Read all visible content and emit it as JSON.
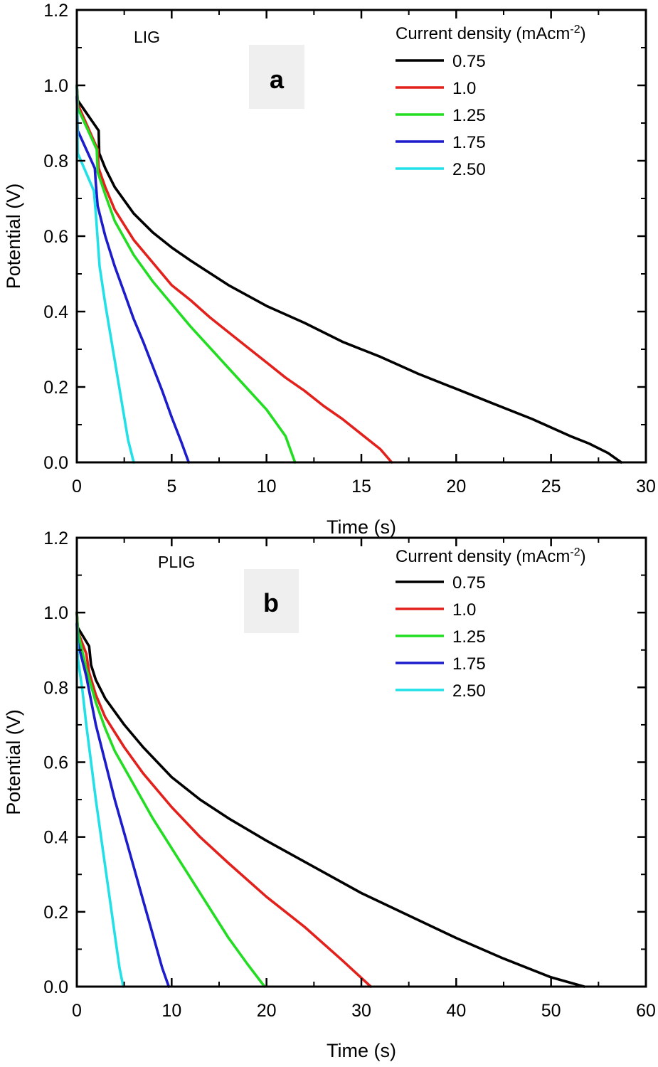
{
  "chart_data": [
    {
      "type": "line",
      "panel_label": "a",
      "sample_label": "LIG",
      "xlabel": "Time (s)",
      "ylabel": "Potential (V)",
      "xlim": [
        0,
        30
      ],
      "ylim": [
        0,
        1.2
      ],
      "x_ticks": [
        "0",
        "5",
        "10",
        "15",
        "20",
        "25",
        "30"
      ],
      "y_ticks": [
        "0.0",
        "0.2",
        "0.4",
        "0.6",
        "0.8",
        "1.0",
        "1.2"
      ],
      "grid": false,
      "legend_position": "top-right",
      "legend_title": {
        "main": "Current density (mAcm",
        "sup": "-2",
        "close": ")"
      },
      "series": [
        {
          "name": "0.75",
          "color": "#000000",
          "x": [
            0,
            0.05,
            1.15,
            1.18,
            1.5,
            2,
            3,
            4,
            5,
            6,
            8,
            10,
            12,
            14,
            16,
            18,
            20,
            22,
            24,
            26,
            27,
            28,
            28.7
          ],
          "y": [
            1.0,
            0.96,
            0.88,
            0.82,
            0.78,
            0.73,
            0.66,
            0.61,
            0.57,
            0.535,
            0.47,
            0.415,
            0.37,
            0.32,
            0.28,
            0.235,
            0.195,
            0.155,
            0.115,
            0.07,
            0.05,
            0.025,
            0.0
          ]
        },
        {
          "name": "1.0",
          "color": "#e3211c",
          "x": [
            0,
            0.05,
            1.1,
            1.15,
            1.5,
            2,
            3,
            4,
            5,
            6,
            7,
            8,
            9,
            10,
            11,
            12,
            13,
            14,
            15,
            16,
            16.6
          ],
          "y": [
            1.0,
            0.95,
            0.83,
            0.78,
            0.73,
            0.67,
            0.59,
            0.53,
            0.47,
            0.43,
            0.385,
            0.345,
            0.305,
            0.265,
            0.225,
            0.19,
            0.15,
            0.115,
            0.075,
            0.035,
            0.0
          ]
        },
        {
          "name": "1.25",
          "color": "#22dd22",
          "x": [
            0,
            0.05,
            1.05,
            1.1,
            1.5,
            2,
            3,
            4,
            5,
            6,
            7,
            8,
            9,
            10,
            11,
            11.5
          ],
          "y": [
            1.0,
            0.94,
            0.83,
            0.77,
            0.71,
            0.64,
            0.55,
            0.48,
            0.42,
            0.36,
            0.305,
            0.25,
            0.195,
            0.14,
            0.07,
            0.0
          ]
        },
        {
          "name": "1.75",
          "color": "#1c1ccc",
          "x": [
            0,
            0.05,
            0.95,
            1.0,
            1.1,
            1.5,
            2,
            2.5,
            3,
            3.5,
            4,
            4.5,
            5,
            5.5,
            5.9
          ],
          "y": [
            0.97,
            0.88,
            0.78,
            0.74,
            0.68,
            0.6,
            0.52,
            0.45,
            0.38,
            0.32,
            0.255,
            0.19,
            0.12,
            0.055,
            0.0
          ]
        },
        {
          "name": "2.50",
          "color": "#22e0e8",
          "x": [
            0,
            0.05,
            0.9,
            1.0,
            1.2,
            1.5,
            1.8,
            2.1,
            2.4,
            2.7,
            3.0
          ],
          "y": [
            1.0,
            0.82,
            0.72,
            0.66,
            0.52,
            0.42,
            0.33,
            0.24,
            0.15,
            0.06,
            0.0
          ]
        }
      ]
    },
    {
      "type": "line",
      "panel_label": "b",
      "sample_label": "PLIG",
      "xlabel": "Time (s)",
      "ylabel": "Potential (V)",
      "xlim": [
        0,
        60
      ],
      "ylim": [
        0,
        1.2
      ],
      "x_ticks": [
        "0",
        "10",
        "20",
        "30",
        "40",
        "50",
        "60"
      ],
      "y_ticks": [
        "0.0",
        "0.2",
        "0.4",
        "0.6",
        "0.8",
        "1.0",
        "1.2"
      ],
      "grid": false,
      "legend_position": "top-right",
      "legend_title": {
        "main": "Current density (mAcm",
        "sup": "-2",
        "close": ")"
      },
      "series": [
        {
          "name": "0.75",
          "color": "#000000",
          "x": [
            0,
            0.1,
            1.3,
            1.5,
            2,
            3,
            5,
            7,
            10,
            13,
            16,
            20,
            25,
            30,
            35,
            40,
            45,
            50,
            53.5
          ],
          "y": [
            1.0,
            0.96,
            0.91,
            0.86,
            0.82,
            0.77,
            0.7,
            0.64,
            0.56,
            0.5,
            0.45,
            0.39,
            0.32,
            0.25,
            0.19,
            0.13,
            0.075,
            0.025,
            0.0
          ]
        },
        {
          "name": "1.0",
          "color": "#e3211c",
          "x": [
            0,
            0.1,
            1.0,
            1.3,
            2,
            3,
            5,
            7,
            10,
            13,
            16,
            20,
            24,
            28,
            31
          ],
          "y": [
            1.0,
            0.95,
            0.89,
            0.84,
            0.78,
            0.72,
            0.64,
            0.57,
            0.48,
            0.4,
            0.33,
            0.24,
            0.16,
            0.07,
            0.0
          ]
        },
        {
          "name": "1.25",
          "color": "#22dd22",
          "x": [
            0,
            0.1,
            1.0,
            2,
            3,
            4,
            6,
            8,
            10,
            12,
            14,
            16,
            18,
            19.8
          ],
          "y": [
            1.0,
            0.95,
            0.85,
            0.76,
            0.69,
            0.63,
            0.54,
            0.45,
            0.37,
            0.29,
            0.21,
            0.13,
            0.06,
            0.0
          ]
        },
        {
          "name": "1.75",
          "color": "#1c1ccc",
          "x": [
            0,
            0.1,
            1.0,
            2,
            3,
            4,
            5,
            6,
            7,
            8,
            9,
            9.7
          ],
          "y": [
            0.97,
            0.92,
            0.83,
            0.7,
            0.6,
            0.5,
            0.41,
            0.32,
            0.23,
            0.14,
            0.05,
            0.0
          ]
        },
        {
          "name": "2.50",
          "color": "#22e0e8",
          "x": [
            0,
            0.1,
            0.6,
            1.0,
            1.5,
            2,
            2.5,
            3,
            3.5,
            4,
            4.5,
            4.9
          ],
          "y": [
            0.97,
            0.88,
            0.79,
            0.7,
            0.6,
            0.5,
            0.41,
            0.32,
            0.23,
            0.14,
            0.05,
            0.0
          ]
        }
      ]
    }
  ]
}
